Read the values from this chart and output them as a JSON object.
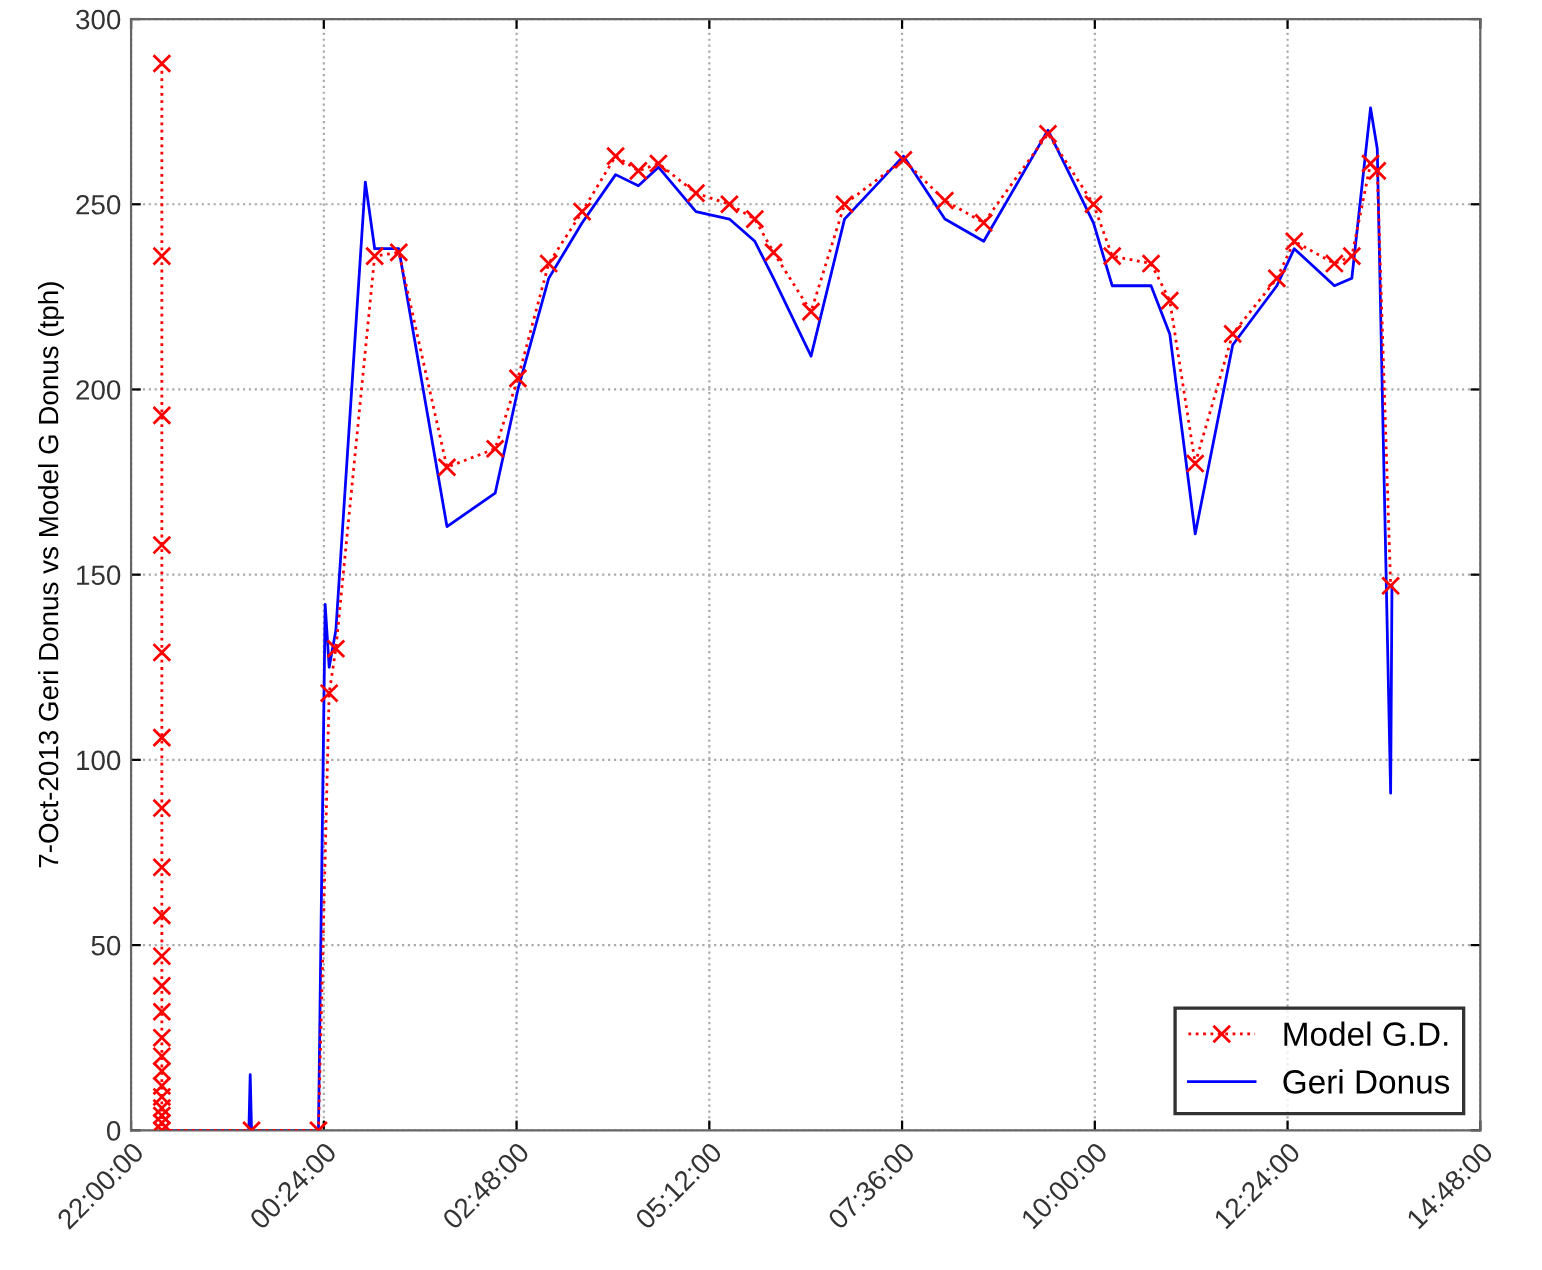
{
  "chart_data": {
    "type": "line",
    "ylabel": "7-Oct-2013 Geri Donus vs Model G Donus (tph)",
    "xlim": [
      "2013-10-06T22:00",
      "2013-10-07T14:48"
    ],
    "xticks": [
      {
        "value": "2013-10-06T22:00",
        "label": "22:00:00"
      },
      {
        "value": "2013-10-07T00:24",
        "label": "00:24:00"
      },
      {
        "value": "2013-10-07T02:48",
        "label": "02:48:00"
      },
      {
        "value": "2013-10-07T05:12",
        "label": "05:12:00"
      },
      {
        "value": "2013-10-07T07:36",
        "label": "07:36:00"
      },
      {
        "value": "2013-10-07T10:00",
        "label": "10:00:00"
      },
      {
        "value": "2013-10-07T12:24",
        "label": "12:24:00"
      },
      {
        "value": "2013-10-07T14:48",
        "label": "14:48:00"
      }
    ],
    "ylim": [
      0,
      300
    ],
    "yticks": [
      0,
      50,
      100,
      150,
      200,
      250,
      300
    ],
    "grid": true,
    "legend": "bottom right",
    "series": [
      {
        "name": "Model G.D.",
        "color": "#ff0000",
        "marker": "cross",
        "line_style": "dotted",
        "x": [
          "2013-10-06T22:23",
          "2013-10-06T22:23",
          "2013-10-06T22:23",
          "2013-10-06T22:23",
          "2013-10-06T22:23",
          "2013-10-06T22:23",
          "2013-10-06T22:23",
          "2013-10-06T22:23",
          "2013-10-06T22:23",
          "2013-10-06T22:23",
          "2013-10-06T22:23",
          "2013-10-06T22:23",
          "2013-10-06T22:23",
          "2013-10-06T22:23",
          "2013-10-06T22:23",
          "2013-10-06T22:23",
          "2013-10-06T22:23",
          "2013-10-06T22:23",
          "2013-10-06T22:23",
          "2013-10-06T22:23",
          "2013-10-06T22:23",
          "2013-10-06T23:30",
          "2013-10-07T00:20",
          "2013-10-07T00:28",
          "2013-10-07T00:33",
          "2013-10-07T01:02",
          "2013-10-07T01:20",
          "2013-10-07T01:56",
          "2013-10-07T02:32",
          "2013-10-07T02:49",
          "2013-10-07T03:12",
          "2013-10-07T03:37",
          "2013-10-07T04:02",
          "2013-10-07T04:19",
          "2013-10-07T04:34",
          "2013-10-07T05:02",
          "2013-10-07T05:27",
          "2013-10-07T05:46",
          "2013-10-07T06:00",
          "2013-10-07T06:28",
          "2013-10-07T06:53",
          "2013-10-07T07:37",
          "2013-10-07T08:08",
          "2013-10-07T08:37",
          "2013-10-07T09:25",
          "2013-10-07T09:59",
          "2013-10-07T10:13",
          "2013-10-07T10:42",
          "2013-10-07T10:56",
          "2013-10-07T11:15",
          "2013-10-07T11:43",
          "2013-10-07T12:16",
          "2013-10-07T12:29",
          "2013-10-07T12:59",
          "2013-10-07T13:12",
          "2013-10-07T13:26",
          "2013-10-07T13:31",
          "2013-10-07T13:41"
        ],
        "values": [
          288,
          236,
          193,
          158,
          129,
          106,
          87,
          71,
          58,
          47,
          39,
          32,
          25,
          20,
          16,
          12,
          9,
          6,
          4,
          2,
          0,
          0,
          0,
          118,
          130,
          236,
          237,
          179,
          184,
          203,
          234,
          248,
          263,
          259,
          261,
          253,
          250,
          246,
          237,
          221,
          250,
          262,
          251,
          245,
          269,
          250,
          236,
          234,
          224,
          180,
          215,
          230,
          240,
          234,
          236,
          261,
          259,
          147
        ]
      },
      {
        "name": "Geri Donus",
        "color": "#0000ff",
        "marker": "none",
        "line_style": "solid",
        "x": [
          "2013-10-06T22:23",
          "2013-10-06T23:28",
          "2013-10-06T23:29",
          "2013-10-06T23:30",
          "2013-10-07T00:20",
          "2013-10-07T00:25",
          "2013-10-07T00:28",
          "2013-10-07T00:33",
          "2013-10-07T00:55",
          "2013-10-07T01:02",
          "2013-10-07T01:20",
          "2013-10-07T01:56",
          "2013-10-07T02:32",
          "2013-10-07T02:49",
          "2013-10-07T03:12",
          "2013-10-07T03:37",
          "2013-10-07T04:02",
          "2013-10-07T04:19",
          "2013-10-07T04:34",
          "2013-10-07T05:02",
          "2013-10-07T05:27",
          "2013-10-07T05:46",
          "2013-10-07T06:00",
          "2013-10-07T06:28",
          "2013-10-07T06:53",
          "2013-10-07T07:37",
          "2013-10-07T08:08",
          "2013-10-07T08:37",
          "2013-10-07T09:25",
          "2013-10-07T09:59",
          "2013-10-07T10:13",
          "2013-10-07T10:42",
          "2013-10-07T10:56",
          "2013-10-07T11:15",
          "2013-10-07T11:43",
          "2013-10-07T12:16",
          "2013-10-07T12:29",
          "2013-10-07T12:59",
          "2013-10-07T13:12",
          "2013-10-07T13:26",
          "2013-10-07T13:31",
          "2013-10-07T13:41",
          "2013-10-07T13:42"
        ],
        "values": [
          0,
          0,
          15,
          0,
          0,
          142,
          125,
          135,
          256,
          238,
          238,
          163,
          172,
          200,
          230,
          245,
          258,
          255,
          260,
          248,
          246,
          240,
          230,
          209,
          246,
          263,
          246,
          240,
          270,
          245,
          228,
          228,
          215,
          161,
          212,
          228,
          238,
          228,
          230,
          276,
          265,
          91,
          147
        ]
      }
    ]
  }
}
